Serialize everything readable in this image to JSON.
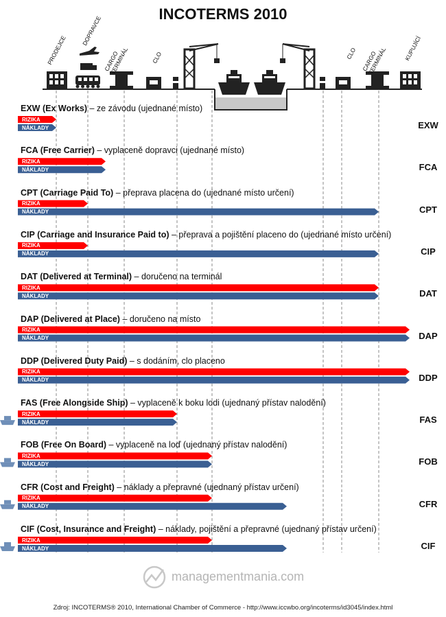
{
  "title": "INCOTERMS 2010",
  "header_labels": [
    {
      "id": "prodejce",
      "text": "PRODEJCE"
    },
    {
      "id": "dopravce",
      "text": "DOPRAVCE"
    },
    {
      "id": "cargo-terminal-1",
      "text": "CARGO\nTERMINÁL"
    },
    {
      "id": "clo-1",
      "text": "CLO"
    },
    {
      "id": "clo-2",
      "text": "CLO"
    },
    {
      "id": "cargo-terminal-2",
      "text": "CARGO\nTERMINÁL"
    },
    {
      "id": "kupujici",
      "text": "KUPUJÍCÍ"
    }
  ],
  "bar_labels": {
    "risk": "RIZIKA",
    "cost": "NÁKLADY"
  },
  "colors": {
    "risk": "#ff0000",
    "cost": "#3a5f93",
    "gray": "#c8c8c8",
    "text": "#111111"
  },
  "rows": [
    {
      "code": "EXW",
      "name": "EXW (Ex Works)",
      "desc": " – ze závodu (ujednané místo)",
      "risk_end": 1,
      "cost_end": 1,
      "ship": false
    },
    {
      "code": "FCA",
      "name": "FCA (Free Carrier)",
      "desc": " – vyplaceně dopravci (ujednané místo)",
      "risk_end": 3,
      "cost_end": 3,
      "ship": false
    },
    {
      "code": "CPT",
      "name": "CPT (Carriage Paid To)",
      "desc": " – přeprava placena do (ujednané místo určení)",
      "risk_end": 2,
      "cost_end": 11,
      "ship": false
    },
    {
      "code": "CIP",
      "name": "CIP (Carriage and Insurance Paid to)",
      "desc": " – přeprava a pojištění placeno do (ujednané místo určení)",
      "risk_end": 2,
      "cost_end": 11,
      "ship": false
    },
    {
      "code": "DAT",
      "name": "DAT (Delivered at Terminal)",
      "desc": " – doručeno na terminál",
      "risk_end": 11,
      "cost_end": 11,
      "ship": false
    },
    {
      "code": "DAP",
      "name": "DAP (Delivered at Place)",
      "desc": " – doručeno na místo",
      "risk_end": 12,
      "cost_end": 12,
      "ship": false
    },
    {
      "code": "DDP",
      "name": "DDP (Delivered Duty Paid)",
      "desc": " – s dodáním, clo placeno",
      "risk_end": 12,
      "cost_end": 12,
      "ship": false
    },
    {
      "code": "FAS",
      "name": "FAS (Free Alongside Ship)",
      "desc": " – vyplaceně k boku lodi (ujednaný přístav nalodění)",
      "risk_end": 5,
      "cost_end": 5,
      "ship": true
    },
    {
      "code": "FOB",
      "name": "FOB (Free On Board)",
      "desc": " – vyplaceně na loď (ujednaný přístav nalodění)",
      "risk_end": 6,
      "cost_end": 6,
      "ship": true
    },
    {
      "code": "CFR",
      "name": "CFR (Cost and Freight)",
      "desc": " – náklady a přepravné (ujednaný přístav určení)",
      "risk_end": 6,
      "cost_end": 8,
      "ship": true
    },
    {
      "code": "CIF",
      "name": "CIF (Cost, Insurance and Freight)",
      "desc": " – náklady, pojištění a přepravné (ujednaný přístav určení)",
      "risk_end": 6,
      "cost_end": 8,
      "ship": true
    }
  ],
  "logo_text": "managementmania.com",
  "source": "Zdroj: INCOTERMS® 2010, International Chamber of Commerce  -  http://www.iccwbo.org/incoterms/id3045/index.html"
}
